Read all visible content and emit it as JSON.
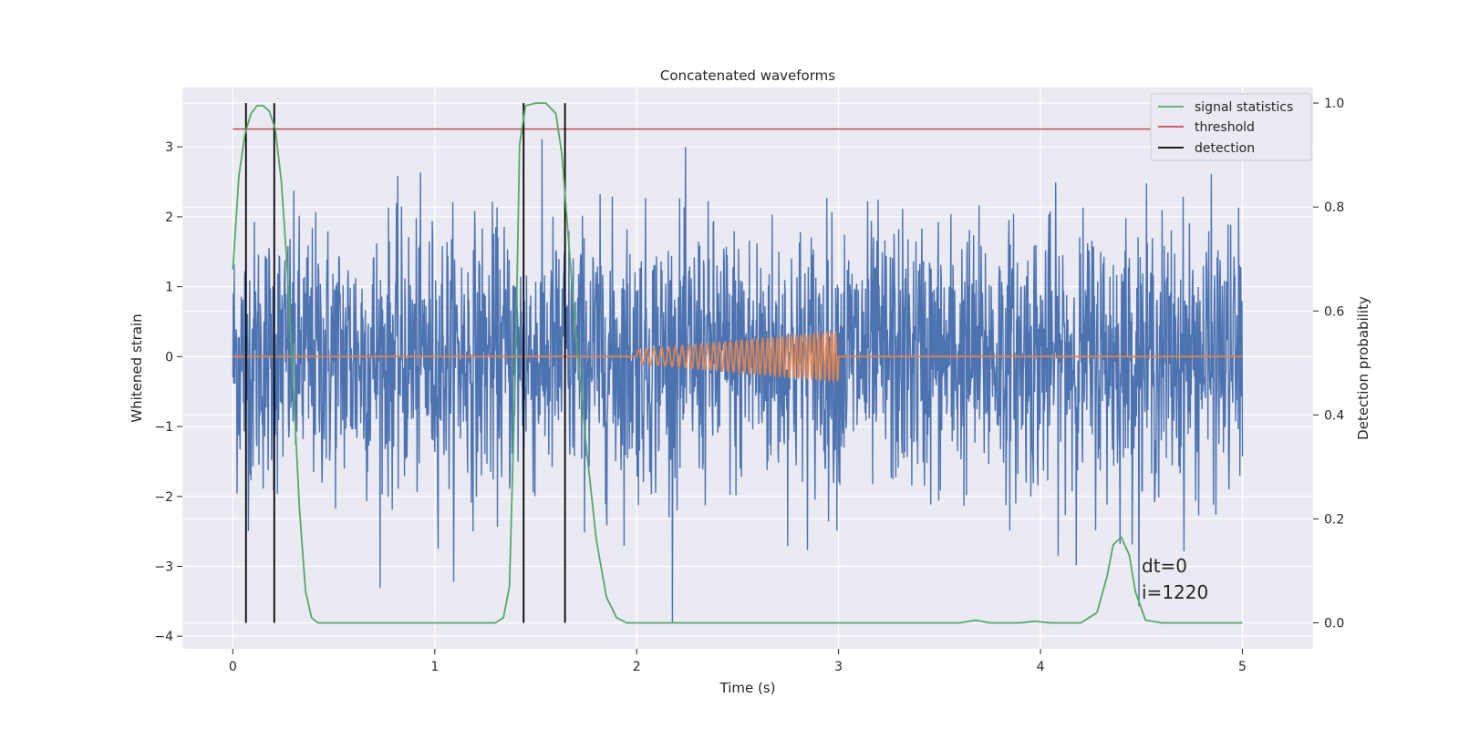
{
  "chart_data": {
    "type": "line",
    "title": "Concatenated waveforms",
    "xlabel": "Time (s)",
    "ylabel": "Whitened strain",
    "ylabel_right": "Detection probability",
    "xlim": [
      -0.25,
      5.35
    ],
    "ylim": [
      -4.18,
      3.85
    ],
    "ylim_right": [
      -0.05,
      1.03
    ],
    "xticks": [
      0,
      1,
      2,
      3,
      4,
      5
    ],
    "yticks": [
      -4,
      -3,
      -2,
      -1,
      0,
      1,
      2,
      3
    ],
    "yticks_right": [
      0.0,
      0.2,
      0.4,
      0.6,
      0.8,
      1.0
    ],
    "xtick_labels": [
      "0",
      "1",
      "2",
      "3",
      "4",
      "5"
    ],
    "ytick_labels": [
      "−4",
      "−3",
      "−2",
      "−1",
      "0",
      "1",
      "2",
      "3"
    ],
    "ytick_right_labels": [
      "0.0",
      "0.2",
      "0.4",
      "0.6",
      "0.8",
      "1.0"
    ],
    "grid": true,
    "legend_position": "top-right",
    "series": [
      {
        "name": "",
        "axis": "left",
        "style": "noise",
        "color": "#4c72b0",
        "x_range": [
          0,
          5
        ],
        "y_extent": [
          -3.8,
          3.5
        ]
      },
      {
        "name": "",
        "axis": "left",
        "style": "chirp",
        "color": "#dd8452",
        "x": [
          0,
          2,
          3,
          5
        ],
        "amplitude": [
          0.1,
          0.35
        ],
        "chirp_range": [
          2,
          3
        ]
      },
      {
        "name": "signal statistics",
        "axis": "right",
        "color": "#55a868",
        "x": [
          0.0,
          0.03,
          0.06,
          0.09,
          0.12,
          0.15,
          0.18,
          0.21,
          0.24,
          0.27,
          0.3,
          0.33,
          0.36,
          0.39,
          0.42,
          0.5,
          1.0,
          1.3,
          1.34,
          1.37,
          1.4,
          1.42,
          1.45,
          1.5,
          1.55,
          1.6,
          1.63,
          1.66,
          1.7,
          1.75,
          1.8,
          1.85,
          1.9,
          1.95,
          2.0,
          3.0,
          3.6,
          3.68,
          3.75,
          3.9,
          3.97,
          4.05,
          4.2,
          4.28,
          4.33,
          4.36,
          4.4,
          4.44,
          4.47,
          4.52,
          4.6,
          5.0
        ],
        "values": [
          0.68,
          0.86,
          0.94,
          0.98,
          0.995,
          0.995,
          0.985,
          0.95,
          0.85,
          0.68,
          0.45,
          0.22,
          0.06,
          0.01,
          0.0,
          0.0,
          0.0,
          0.0,
          0.01,
          0.07,
          0.5,
          0.92,
          0.995,
          1.0,
          1.0,
          0.98,
          0.9,
          0.75,
          0.55,
          0.34,
          0.16,
          0.05,
          0.01,
          0.0,
          0.0,
          0.0,
          0.0,
          0.005,
          0.0,
          0.0,
          0.003,
          0.0,
          0.0,
          0.02,
          0.09,
          0.15,
          0.165,
          0.13,
          0.06,
          0.005,
          0.0,
          0.0
        ]
      },
      {
        "name": "threshold",
        "axis": "right",
        "color": "#c44e52",
        "x": [
          0,
          5
        ],
        "values": [
          0.95,
          0.95
        ]
      }
    ],
    "detections": {
      "name": "detection",
      "color": "#000000",
      "x": [
        0.065,
        0.205,
        1.44,
        1.645
      ]
    },
    "annotations": [
      "dt=0",
      "i=1220"
    ]
  }
}
